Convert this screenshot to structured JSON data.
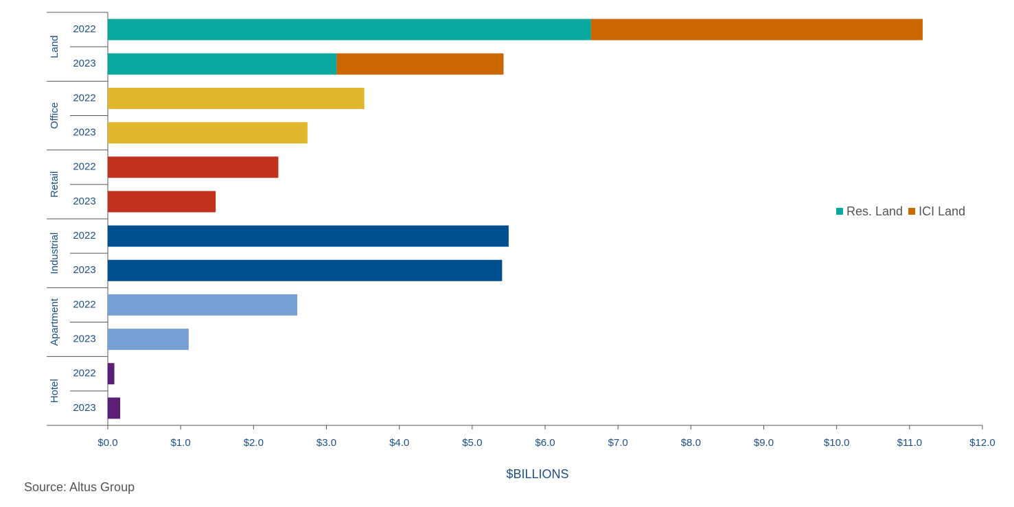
{
  "chart_data": {
    "type": "grouped-stacked-hbar",
    "groups": [
      {
        "name": "Land",
        "categories": [
          "2022",
          "2023"
        ],
        "series": [
          {
            "name": "Res. Land",
            "color": "#0ba8a0",
            "values": [
              6.63,
              3.14
            ]
          },
          {
            "name": "ICI Land",
            "color": "#cc6600",
            "values": [
              4.55,
              2.29
            ]
          }
        ]
      },
      {
        "name": "Office",
        "categories": [
          "2022",
          "2023"
        ],
        "series": [
          {
            "color": "#e1b72e",
            "values": [
              3.52,
              2.74
            ]
          }
        ]
      },
      {
        "name": "Retail",
        "categories": [
          "2022",
          "2023"
        ],
        "series": [
          {
            "color": "#c0321e",
            "values": [
              2.34,
              1.48
            ]
          }
        ]
      },
      {
        "name": "Industrial",
        "categories": [
          "2022",
          "2023"
        ],
        "series": [
          {
            "color": "#004f8e",
            "values": [
              5.5,
              5.41
            ]
          }
        ]
      },
      {
        "name": "Apartment",
        "categories": [
          "2022",
          "2023"
        ],
        "series": [
          {
            "color": "#769fd3",
            "values": [
              2.6,
              1.11
            ]
          }
        ]
      },
      {
        "name": "Hotel",
        "categories": [
          "2022",
          "2023"
        ],
        "series": [
          {
            "color": "#5b1f77",
            "values": [
              0.09,
              0.17
            ]
          }
        ]
      }
    ],
    "xlabel": "$BILLIONS",
    "xlim": [
      0,
      12
    ],
    "xticks": [
      {
        "value": 0,
        "label": "$0.0"
      },
      {
        "value": 1,
        "label": "$1.0"
      },
      {
        "value": 2,
        "label": "$2.0"
      },
      {
        "value": 3,
        "label": "$3.0"
      },
      {
        "value": 4,
        "label": "$4.0"
      },
      {
        "value": 5,
        "label": "$5.0"
      },
      {
        "value": 6,
        "label": "$6.0"
      },
      {
        "value": 7,
        "label": "$7.0"
      },
      {
        "value": 8,
        "label": "$8.0"
      },
      {
        "value": 9,
        "label": "$9.0"
      },
      {
        "value": 10,
        "label": "$10.0"
      },
      {
        "value": 11,
        "label": "$11.0"
      },
      {
        "value": 12,
        "label": "$12.0"
      }
    ],
    "legend": "right",
    "source": "Source:  Altus Group"
  }
}
